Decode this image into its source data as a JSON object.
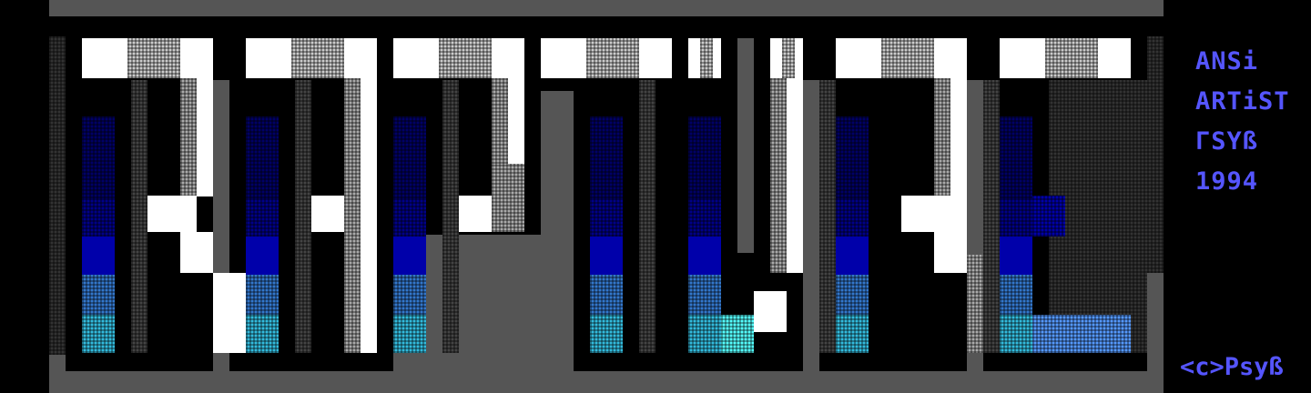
{
  "artwork": {
    "style": "ANSI block art logo",
    "colors": {
      "background": "#000000",
      "gray": "#555555",
      "light_gray": "#aaaaaa",
      "white": "#ffffff",
      "dark_blue": "#0000aa",
      "blue": "#5555ff",
      "cyan": "#55ffff",
      "text": "#5555ff"
    }
  },
  "side_text": {
    "line1": "ANSi",
    "line2": "ARTiST",
    "line3": "ΓSYß",
    "line4": "1994"
  },
  "credit": "<c>Psyß"
}
